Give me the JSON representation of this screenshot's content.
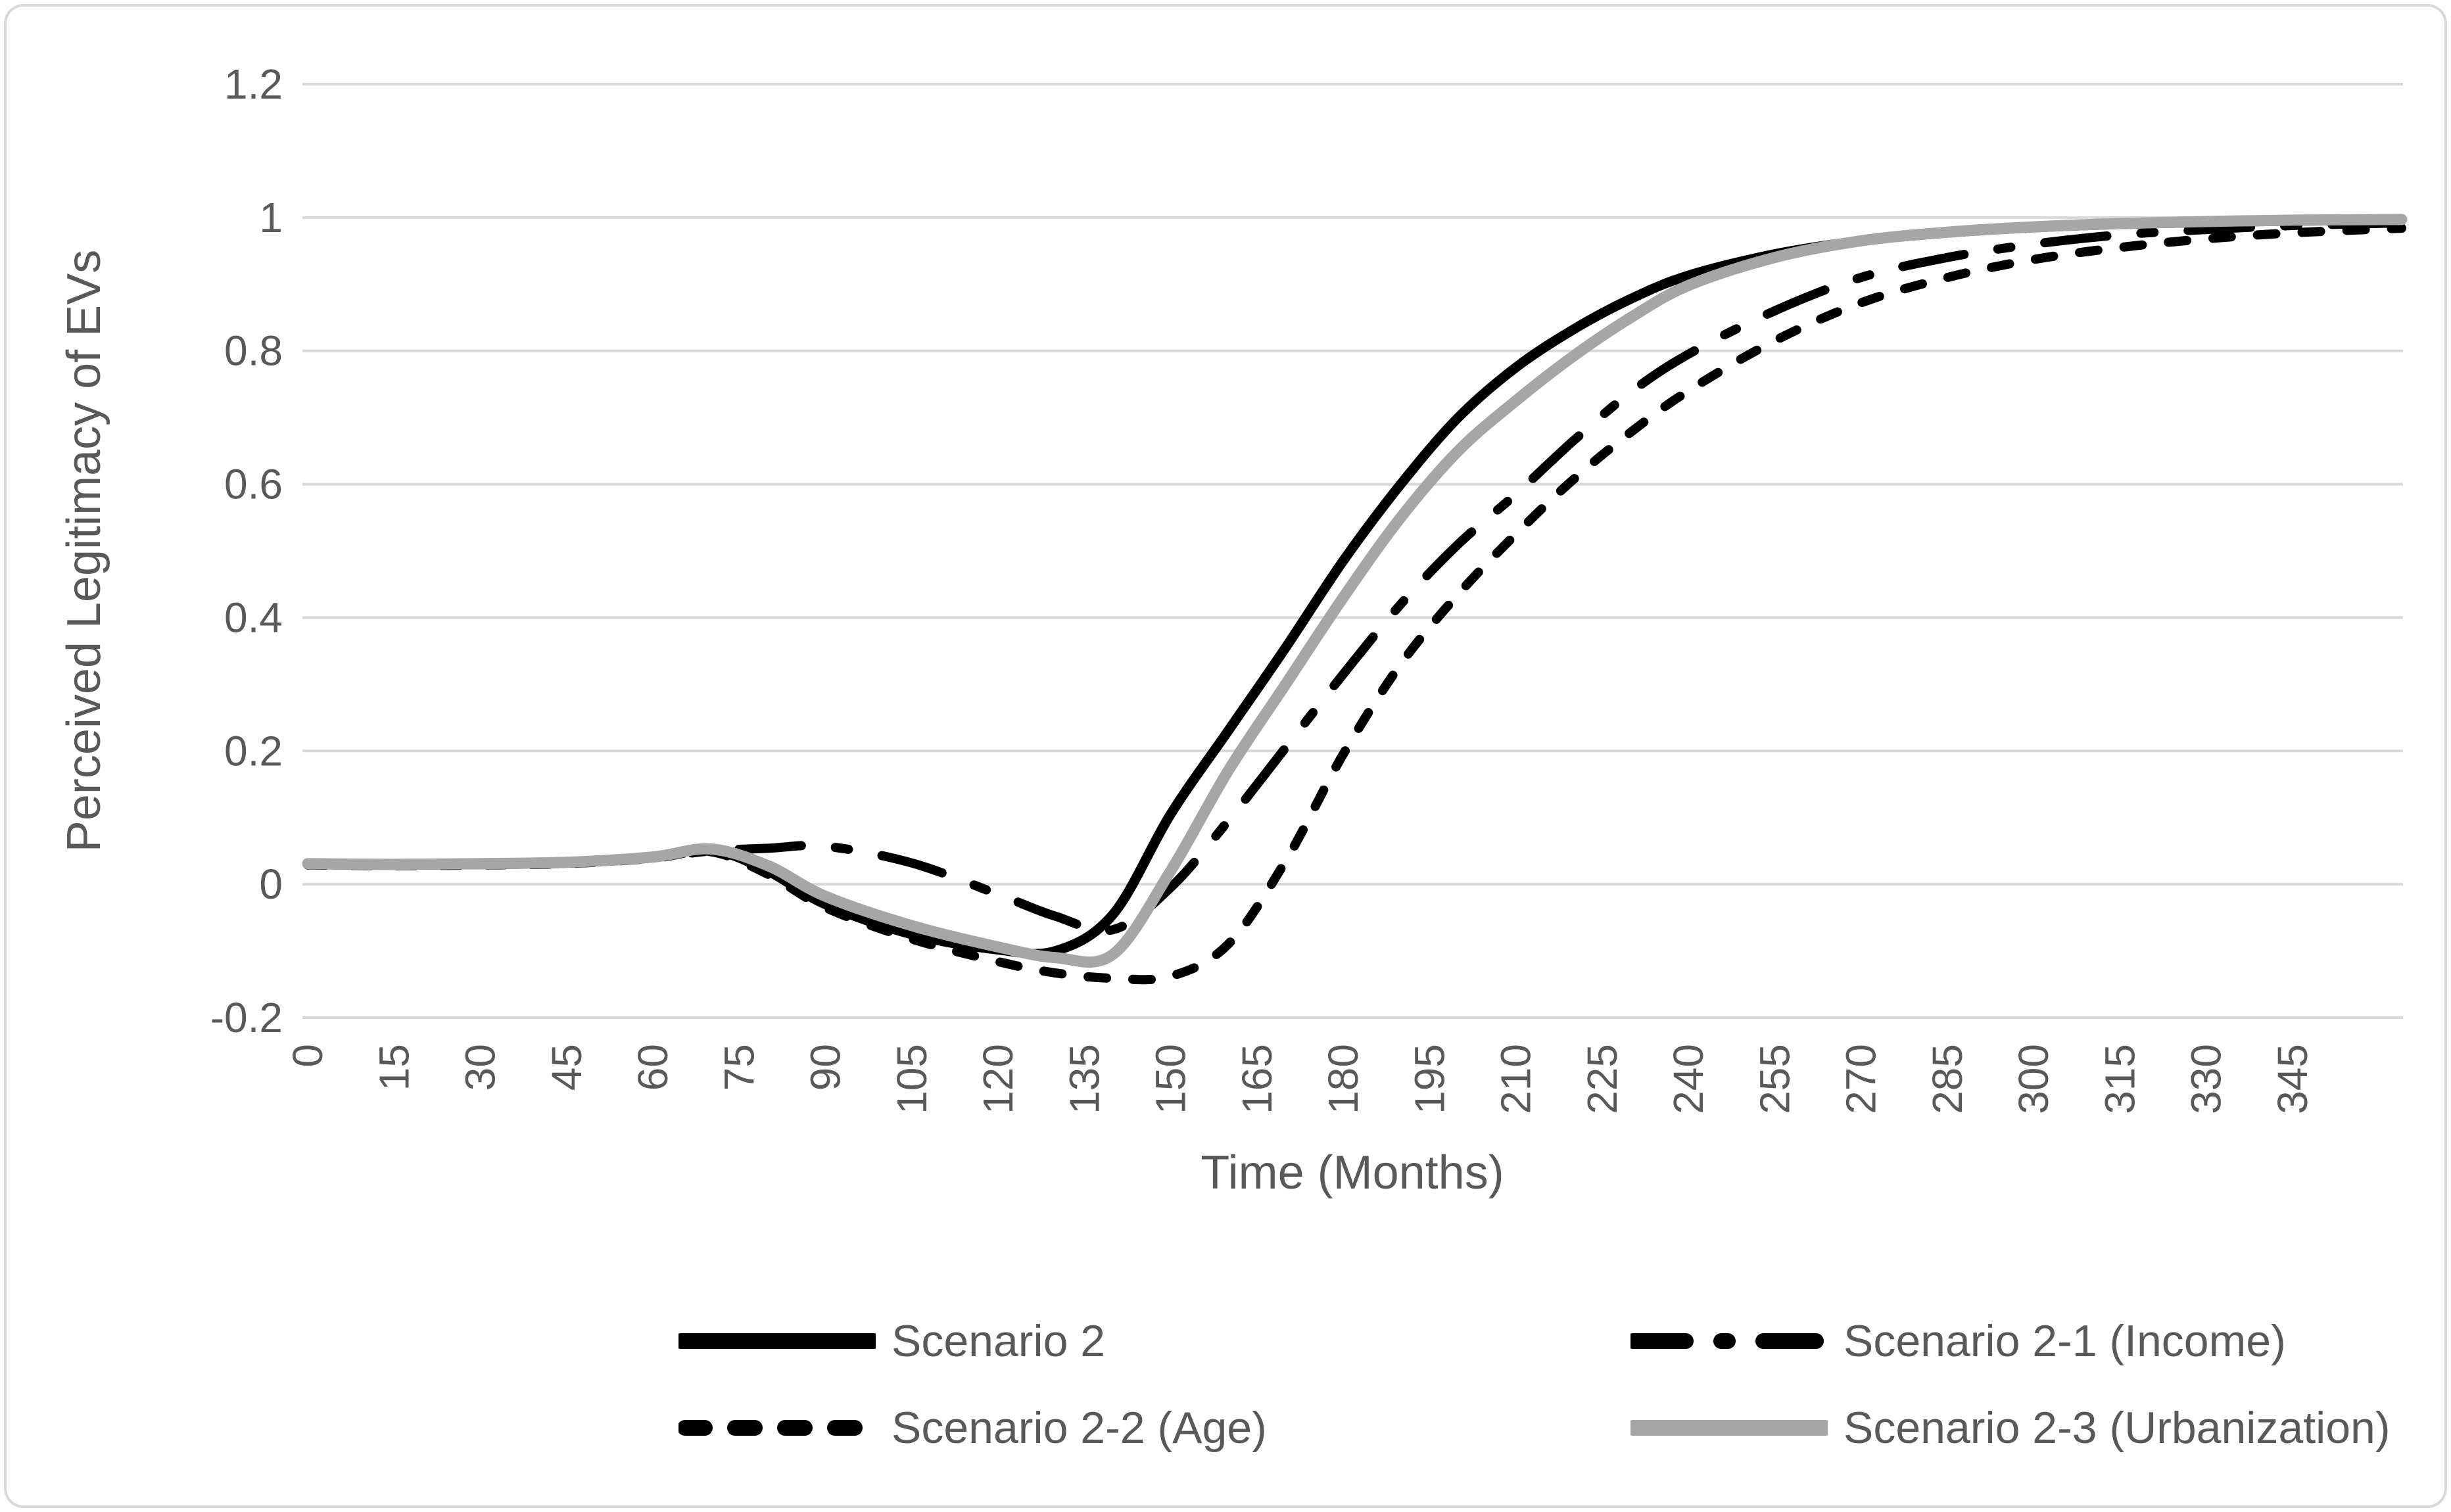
{
  "chart_data": {
    "type": "line",
    "title": "",
    "xlabel": "Time (Months)",
    "ylabel": "Perceived Legitimacy of EVs",
    "xlim": [
      0,
      364
    ],
    "ylim": [
      -0.2,
      1.2
    ],
    "grid": "horizontal",
    "legend_position": "bottom",
    "x_tick_values": [
      0,
      15,
      30,
      45,
      60,
      75,
      90,
      105,
      120,
      135,
      150,
      165,
      180,
      195,
      210,
      225,
      240,
      255,
      270,
      285,
      300,
      315,
      330,
      345
    ],
    "x_tick_labels": [
      "0",
      "15",
      "30",
      "45",
      "60",
      "75",
      "90",
      "105",
      "120",
      "135",
      "150",
      "165",
      "180",
      "195",
      "210",
      "225",
      "240",
      "255",
      "270",
      "285",
      "300",
      "315",
      "330",
      "345"
    ],
    "y_tick_values": [
      1.2,
      1,
      0.8,
      0.6,
      0.4,
      0.2,
      0,
      -0.2
    ],
    "y_tick_labels": [
      "1.2",
      "1",
      "0.8",
      "0.6",
      "0.4",
      "0.2",
      "0",
      "-0.2"
    ],
    "x": [
      0,
      15,
      30,
      45,
      60,
      70,
      80,
      90,
      105,
      120,
      130,
      140,
      150,
      160,
      170,
      180,
      190,
      200,
      210,
      220,
      230,
      240,
      255,
      270,
      285,
      300,
      315,
      330,
      345,
      364
    ],
    "series": [
      {
        "name": "Scenario 2",
        "color": "#000000",
        "dash": "solid",
        "width": 15,
        "values": [
          0.03,
          0.029,
          0.03,
          0.032,
          0.04,
          0.052,
          0.02,
          -0.03,
          -0.075,
          -0.098,
          -0.1,
          -0.045,
          0.105,
          0.23,
          0.355,
          0.485,
          0.6,
          0.7,
          0.775,
          0.832,
          0.878,
          0.913,
          0.945,
          0.965,
          0.977,
          0.985,
          0.99,
          0.993,
          0.995,
          0.996
        ]
      },
      {
        "name": "Scenario 2-1 (Income)",
        "color": "#000000",
        "dash": "long-dash",
        "width": 14,
        "values": [
          0.03,
          0.029,
          0.03,
          0.032,
          0.04,
          0.05,
          0.054,
          0.057,
          0.032,
          -0.015,
          -0.048,
          -0.068,
          -0.005,
          0.095,
          0.205,
          0.315,
          0.42,
          0.51,
          0.585,
          0.665,
          0.738,
          0.795,
          0.86,
          0.91,
          0.94,
          0.96,
          0.974,
          0.982,
          0.988,
          0.992
        ]
      },
      {
        "name": "Scenario 2-2 (Age)",
        "color": "#000000",
        "dash": "short-dash",
        "width": 14,
        "values": [
          0.029,
          0.028,
          0.029,
          0.031,
          0.039,
          0.049,
          0.015,
          -0.035,
          -0.082,
          -0.116,
          -0.133,
          -0.141,
          -0.138,
          -0.09,
          0.035,
          0.195,
          0.33,
          0.435,
          0.525,
          0.607,
          0.678,
          0.74,
          0.815,
          0.872,
          0.91,
          0.937,
          0.955,
          0.968,
          0.977,
          0.984
        ]
      },
      {
        "name": "Scenario 2-3 (Urbanization)",
        "color": "#a6a6a6",
        "dash": "solid",
        "width": 17,
        "values": [
          0.031,
          0.03,
          0.031,
          0.033,
          0.041,
          0.053,
          0.028,
          -0.018,
          -0.062,
          -0.094,
          -0.11,
          -0.105,
          0.02,
          0.17,
          0.3,
          0.43,
          0.55,
          0.65,
          0.725,
          0.792,
          0.85,
          0.898,
          0.94,
          0.965,
          0.978,
          0.986,
          0.991,
          0.994,
          0.996,
          0.997
        ]
      }
    ],
    "colors": {
      "text": "#595959",
      "gridline": "#d9d9d9",
      "border": "#d9d9d9",
      "background": "#ffffff",
      "gray_series": "#a6a6a6",
      "black_series": "#000000"
    }
  }
}
